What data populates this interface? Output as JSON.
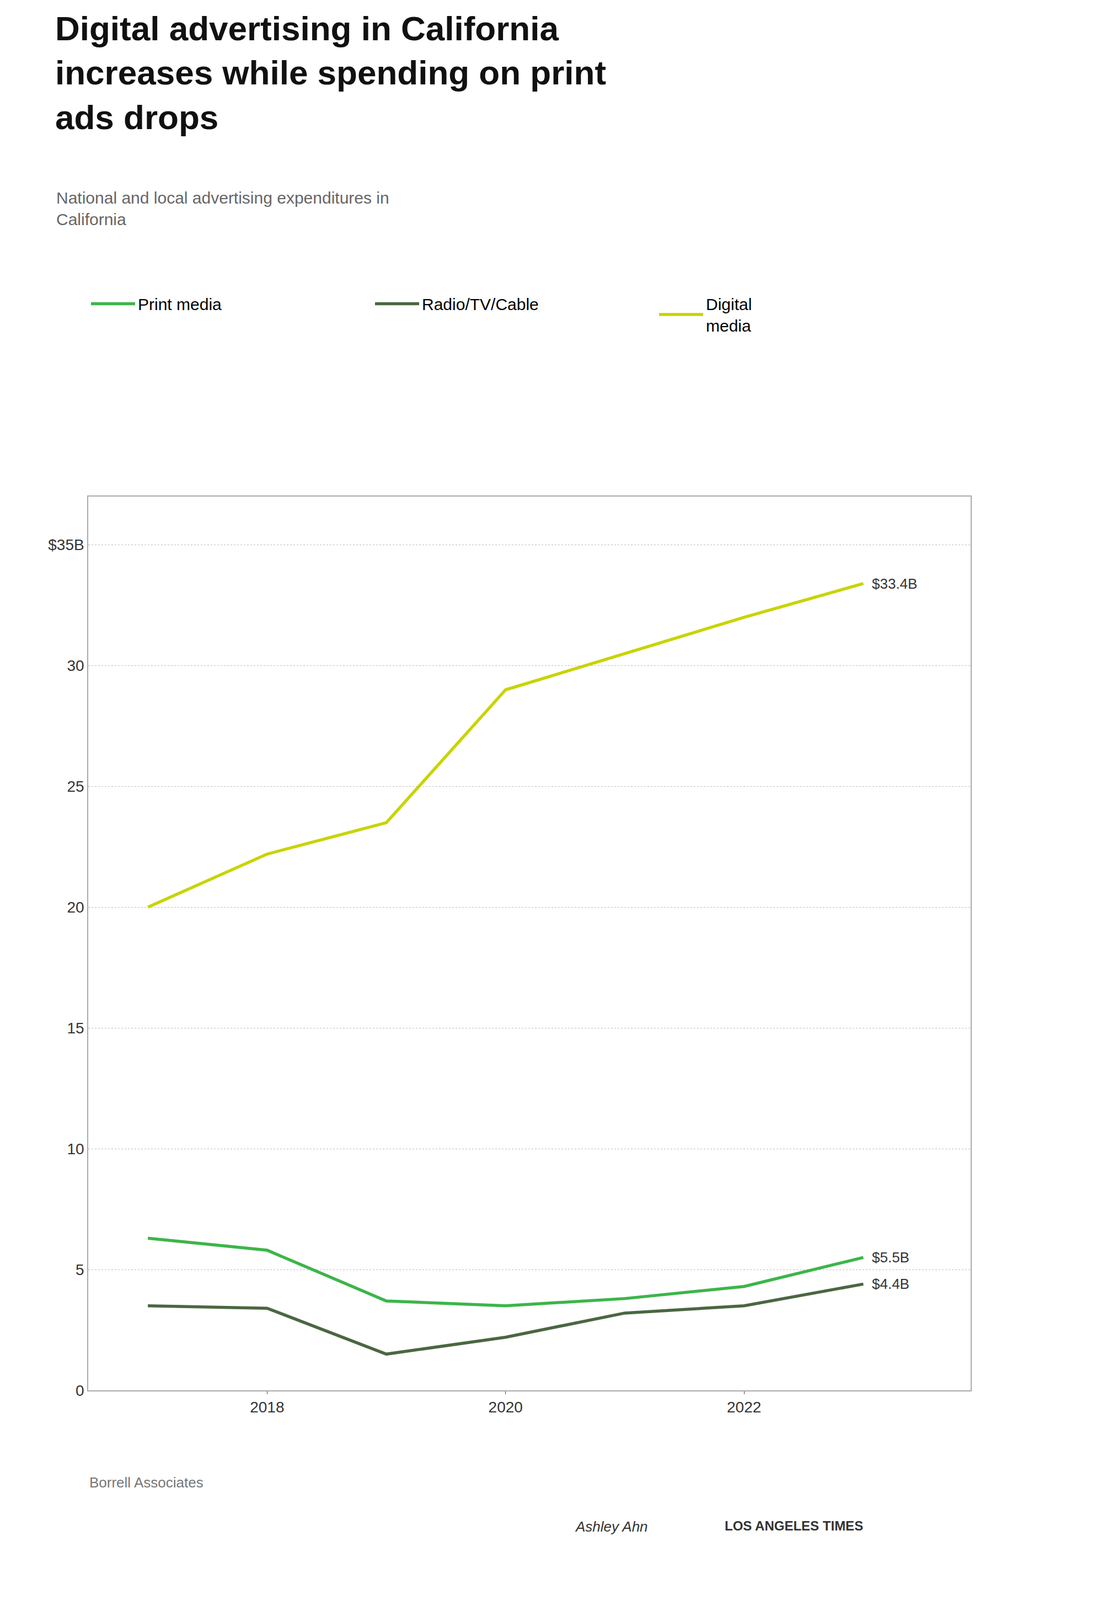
{
  "chart_data": {
    "type": "line",
    "title": "Digital advertising in California\nincreases while spending on print\nads drops",
    "subtitle": "National and local advertising expenditures in\nCalifornia",
    "x": [
      2017,
      2018,
      2019,
      2020,
      2021,
      2022,
      2023
    ],
    "series": [
      {
        "name": "Print media",
        "color": "#3cb54a",
        "values": [
          6.3,
          5.8,
          3.7,
          3.5,
          3.8,
          4.3,
          5.5
        ]
      },
      {
        "name": "Radio/TV/Cable",
        "color": "#4a6741",
        "values": [
          3.5,
          3.4,
          1.5,
          2.2,
          3.2,
          3.5,
          4.4
        ]
      },
      {
        "name": "Digital\nmedia",
        "color": "#c8d400",
        "values": [
          20.0,
          22.2,
          23.5,
          29.0,
          30.5,
          32.0,
          33.4
        ]
      }
    ],
    "xlim": [
      2016.5,
      2023.9
    ],
    "xticks": [
      2018,
      2020,
      2022
    ],
    "ylim": [
      0,
      37
    ],
    "yticks": [
      0,
      5,
      10,
      15,
      20,
      25,
      30,
      {
        "value": 35,
        "label": "$35B"
      }
    ],
    "grid": true,
    "legend": "top",
    "annotations": [
      {
        "text": "$33.4B",
        "x": 2023,
        "y": 33.4
      },
      {
        "text": "$5.5B",
        "x": 2023,
        "y": 5.5
      },
      {
        "text": "$4.4B",
        "x": 2023,
        "y": 4.4
      },
      {
        "text": "Borrell Associates"
      },
      {
        "text": "Ashley Ahn"
      },
      {
        "text": "LOS ANGELES TIMES"
      }
    ]
  }
}
